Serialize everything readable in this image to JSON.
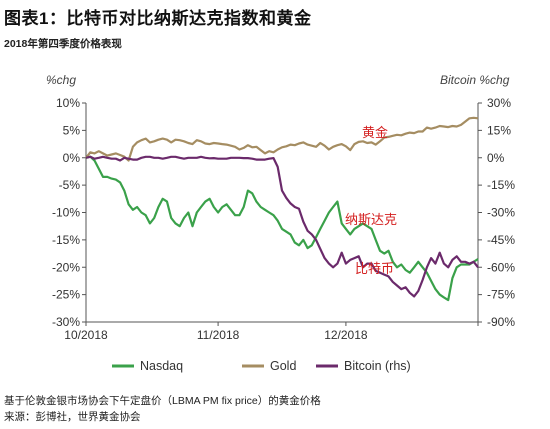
{
  "title": "图表1：比特币对比纳斯达克指数和黄金",
  "subtitle": "2018年第四季度价格表现",
  "notes": [
    "基于伦敦金银市场协会下午定盘价（LBMA PM fix price）的黄金价格",
    "来源：彭博社，世界黄金协会"
  ],
  "chart_data": {
    "type": "line",
    "left_axis": {
      "label": "%chg",
      "ticks": [
        "10%",
        "5%",
        "0%",
        "-5%",
        "-10%",
        "-15%",
        "-20%",
        "-25%",
        "-30%"
      ],
      "range": [
        -30,
        10
      ]
    },
    "right_axis": {
      "label": "Bitcoin %chg",
      "ticks": [
        "30%",
        "15%",
        "0%",
        "-15%",
        "-30%",
        "-45%",
        "-60%",
        "-75%",
        "-90%"
      ],
      "range": [
        -90,
        30
      ]
    },
    "x_axis": {
      "ticks": [
        "10/2018",
        "11/2018",
        "12/2018"
      ],
      "range_days": [
        0,
        92
      ]
    },
    "legend": [
      "Nasdaq",
      "Gold",
      "Bitcoin (rhs)"
    ],
    "annotations": [
      "黄金",
      "纳斯达克",
      "比特币"
    ],
    "colors": {
      "nasdaq": "#3aa14a",
      "gold": "#a58d62",
      "bitcoin": "#6b2a6b",
      "annotation": "#d42020",
      "axis": "#555555"
    },
    "series": [
      {
        "name": "Nasdaq",
        "axis": "left",
        "x": [
          0,
          1,
          2,
          3,
          4,
          5,
          6,
          7,
          8,
          9,
          10,
          11,
          12,
          13,
          14,
          15,
          16,
          17,
          18,
          19,
          20,
          21,
          22,
          23,
          24,
          25,
          26,
          27,
          28,
          29,
          30,
          31,
          32,
          33,
          34,
          35,
          36,
          37,
          38,
          39,
          40,
          41,
          42,
          43,
          44,
          45,
          46,
          47,
          48,
          49,
          50,
          51,
          52,
          53,
          54,
          55,
          56,
          57,
          58,
          59,
          60,
          61,
          62,
          63,
          64,
          65,
          66,
          67,
          68,
          69,
          70,
          71,
          72,
          73,
          74,
          75,
          76,
          77,
          78,
          79,
          80,
          81,
          82,
          83,
          84,
          85,
          86,
          87,
          88,
          89,
          90,
          91,
          92
        ],
        "values": [
          0,
          0.2,
          -0.5,
          -2,
          -3.5,
          -3.5,
          -3.8,
          -4,
          -4.5,
          -6,
          -8.5,
          -9.5,
          -9,
          -10,
          -10.5,
          -12,
          -11,
          -9,
          -7.5,
          -8,
          -11,
          -12,
          -12.5,
          -11,
          -10,
          -12.5,
          -10,
          -9,
          -8,
          -7.5,
          -9,
          -10,
          -9,
          -8.5,
          -9.5,
          -10.5,
          -10.5,
          -9,
          -6,
          -6.5,
          -8,
          -9,
          -9.5,
          -10,
          -10.5,
          -11.5,
          -13,
          -13.5,
          -14,
          -15.5,
          -16,
          -15,
          -16.5,
          -16,
          -14.5,
          -13,
          -11.5,
          -10,
          -9,
          -8,
          -12,
          -13,
          -14,
          -13,
          -12.5,
          -12,
          -12.5,
          -13,
          -15,
          -17,
          -17.5,
          -17,
          -19,
          -20,
          -19.5,
          -20.5,
          -21,
          -20,
          -19,
          -20,
          -21,
          -22.5,
          -24,
          -25,
          -25.5,
          -26,
          -22,
          -20,
          -19.5,
          -19.5,
          -19.5,
          -19,
          -18.5
        ]
      },
      {
        "name": "Gold",
        "axis": "left",
        "x": [
          0,
          1,
          2,
          3,
          4,
          5,
          6,
          7,
          8,
          9,
          10,
          11,
          12,
          13,
          14,
          15,
          16,
          17,
          18,
          19,
          20,
          21,
          22,
          23,
          24,
          25,
          26,
          27,
          28,
          29,
          30,
          31,
          32,
          33,
          34,
          35,
          36,
          37,
          38,
          39,
          40,
          41,
          42,
          43,
          44,
          45,
          46,
          47,
          48,
          49,
          50,
          51,
          52,
          53,
          54,
          55,
          56,
          57,
          58,
          59,
          60,
          61,
          62,
          63,
          64,
          65,
          66,
          67,
          68,
          69,
          70,
          71,
          72,
          73,
          74,
          75,
          76,
          77,
          78,
          79,
          80,
          81,
          82,
          83,
          84,
          85,
          86,
          87,
          88,
          89,
          90,
          91,
          92
        ],
        "values": [
          0,
          1,
          0.8,
          1.2,
          0.8,
          0.4,
          0.6,
          0.8,
          0.5,
          0.2,
          -0.5,
          2,
          2.8,
          3.2,
          3.5,
          2.8,
          3,
          3.3,
          3.5,
          3.3,
          2.8,
          3.3,
          3.2,
          3,
          2.7,
          2.5,
          3.2,
          3,
          2.6,
          2.5,
          2.7,
          2.6,
          2.5,
          2.4,
          2.2,
          2,
          1.5,
          1.8,
          2.3,
          1.9,
          2,
          1.4,
          0.8,
          1.2,
          1,
          1.5,
          1.9,
          2.1,
          2.4,
          2.3,
          2.6,
          2.8,
          2.4,
          2.2,
          2,
          2.7,
          2.2,
          1.5,
          2,
          2.3,
          2.5,
          2.1,
          1.4,
          2.5,
          2.9,
          3,
          2.7,
          2.8,
          2.4,
          3,
          3.7,
          3.8,
          4,
          4.2,
          4.1,
          4.4,
          4.6,
          4.5,
          4.8,
          4.8,
          5.5,
          5.3,
          5.5,
          5.8,
          5.7,
          5.6,
          5.8,
          5.7,
          6,
          6.6,
          7.2,
          7.3,
          7.2
        ]
      },
      {
        "name": "Bitcoin (rhs)",
        "axis": "right",
        "x": [
          0,
          1,
          2,
          3,
          4,
          5,
          6,
          7,
          8,
          9,
          10,
          11,
          12,
          13,
          14,
          15,
          16,
          17,
          18,
          19,
          20,
          21,
          22,
          23,
          24,
          25,
          26,
          27,
          28,
          29,
          30,
          31,
          32,
          33,
          34,
          35,
          36,
          37,
          38,
          39,
          40,
          41,
          42,
          43,
          44,
          45,
          46,
          47,
          48,
          49,
          50,
          51,
          52,
          53,
          54,
          55,
          56,
          57,
          58,
          59,
          60,
          61,
          62,
          63,
          64,
          65,
          66,
          67,
          68,
          69,
          70,
          71,
          72,
          73,
          74,
          75,
          76,
          77,
          78,
          79,
          80,
          81,
          82,
          83,
          84,
          85,
          86,
          87,
          88,
          89,
          90,
          91,
          92
        ],
        "values": [
          0,
          0.5,
          -0.5,
          0,
          0.5,
          0,
          -0.5,
          -0.5,
          -1.5,
          0,
          -0.5,
          -1,
          -1,
          0,
          0.5,
          0.5,
          0,
          0,
          -0.5,
          0,
          0.5,
          0.5,
          0,
          -0.5,
          0,
          0,
          0,
          0.5,
          0,
          -0.3,
          -0.2,
          -0.5,
          -0.5,
          -0.5,
          0,
          0,
          0,
          -0.2,
          -0.2,
          -0.5,
          -1,
          -1,
          -1,
          -0.5,
          -0.2,
          -5,
          -18,
          -22,
          -25,
          -27,
          -28,
          -35,
          -40,
          -42,
          -45,
          -50,
          -55,
          -58,
          -60,
          -58,
          -52,
          -58,
          -56,
          -55,
          -54,
          -60,
          -58,
          -58,
          -62,
          -63,
          -64,
          -65,
          -68,
          -70,
          -72,
          -71,
          -74,
          -76,
          -73,
          -67,
          -60,
          -55,
          -58,
          -52,
          -58,
          -60,
          -56,
          -54,
          -57,
          -57,
          -58,
          -57,
          -60
        ]
      }
    ]
  }
}
